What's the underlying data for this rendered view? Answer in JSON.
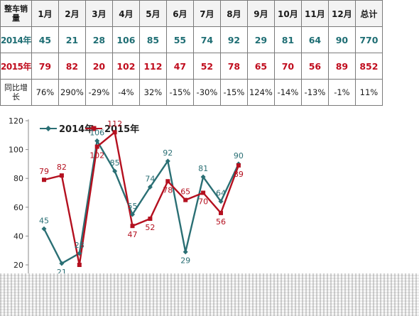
{
  "table": {
    "header_label": "整车销量",
    "months": [
      "1月",
      "2月",
      "3月",
      "4月",
      "5月",
      "6月",
      "7月",
      "8月",
      "9月",
      "10月",
      "11月",
      "12月"
    ],
    "total_label": "总计",
    "rows": [
      {
        "label": "2014年",
        "values": [
          "45",
          "21",
          "28",
          "106",
          "85",
          "55",
          "74",
          "92",
          "29",
          "81",
          "64",
          "90"
        ],
        "total": "770"
      },
      {
        "label": "2015年",
        "values": [
          "79",
          "82",
          "20",
          "102",
          "112",
          "47",
          "52",
          "78",
          "65",
          "70",
          "56",
          "89"
        ],
        "total": "852"
      }
    ],
    "growth": {
      "label": "同比增长",
      "values": [
        "76%",
        "290%",
        "-29%",
        "-4%",
        "32%",
        "-15%",
        "-30%",
        "-15%",
        "124%",
        "-14%",
        "-13%",
        "-1%"
      ],
      "total": "11%"
    }
  },
  "chart_data": {
    "type": "line",
    "x": [
      1,
      2,
      3,
      4,
      5,
      6,
      7,
      8,
      9,
      10,
      11,
      12
    ],
    "ylim": [
      20,
      120
    ],
    "yticks": [
      "20",
      "40",
      "60",
      "80",
      "100",
      "120"
    ],
    "legend_position": "top-left",
    "series": [
      {
        "name": "2014年",
        "color": "#2a6f74",
        "marker": "diamond",
        "values": [
          45,
          21,
          28,
          106,
          85,
          55,
          74,
          92,
          29,
          81,
          64,
          90
        ],
        "labels": [
          "45",
          "21",
          "28",
          "106",
          "85",
          "55",
          "74",
          "92",
          "29",
          "81",
          "64",
          "90"
        ]
      },
      {
        "name": "2015年",
        "color": "#b4101f",
        "marker": "square",
        "values": [
          79,
          82,
          20,
          102,
          112,
          47,
          52,
          78,
          65,
          70,
          56,
          89
        ],
        "labels": [
          "79",
          "82",
          "",
          "102",
          "112",
          "47",
          "52",
          "78",
          "65",
          "70",
          "56",
          "89"
        ]
      }
    ]
  }
}
